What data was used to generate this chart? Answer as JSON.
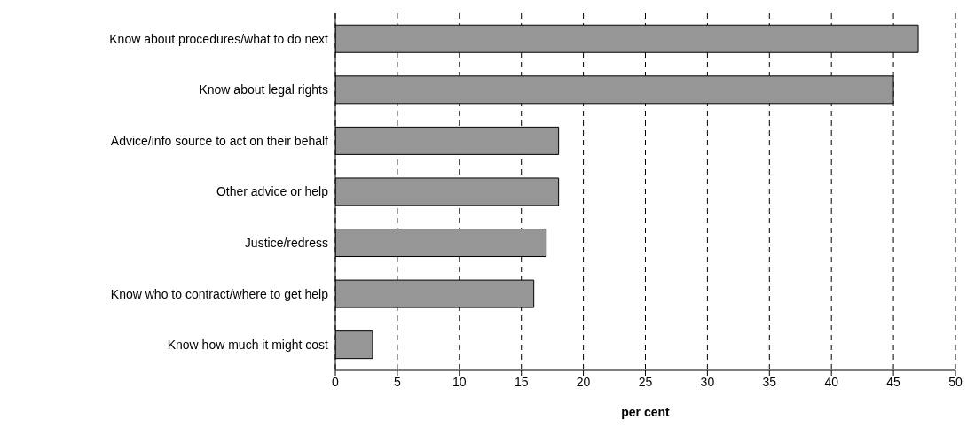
{
  "chart_data": {
    "type": "bar",
    "orientation": "horizontal",
    "xlabel": "per cent",
    "categories": [
      "Know about procedures/what to do next",
      "Know about legal rights",
      "Advice/info source to act on their behalf",
      "Other advice or help",
      "Justice/redress",
      "Know who to contract/where to get help ",
      "Know how much it might cost"
    ],
    "values": [
      47,
      45,
      18,
      18,
      17,
      16,
      3
    ],
    "color": "#969696",
    "xlim": [
      0,
      50
    ],
    "xticks": [
      0,
      5,
      10,
      15,
      20,
      25,
      30,
      35,
      40,
      45,
      50
    ],
    "grid": "x"
  }
}
